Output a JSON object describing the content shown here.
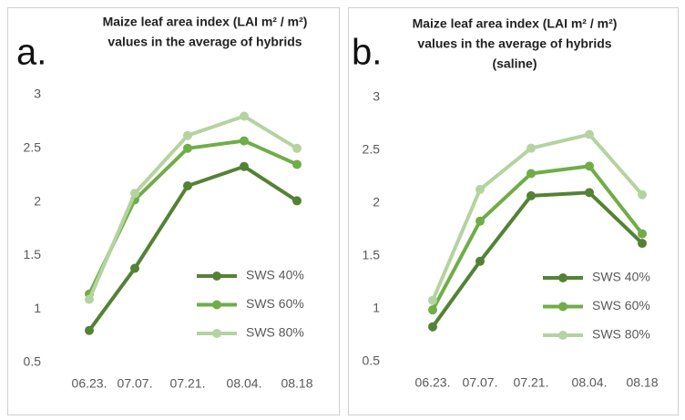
{
  "chart_data": [
    {
      "type": "line",
      "panel_label": "a.",
      "title": [
        "Maize leaf area index (LAI m² / m²)",
        "values in the average of hybrids"
      ],
      "categories": [
        "06.23.",
        "07.07.",
        "07.21.",
        "08.04.",
        "08.18"
      ],
      "series": [
        {
          "name": "SWS 40%",
          "color": "#548235",
          "values": [
            0.8,
            1.38,
            2.15,
            2.33,
            2.01
          ]
        },
        {
          "name": "SWS 60%",
          "color": "#70ad47",
          "values": [
            1.14,
            2.02,
            2.5,
            2.57,
            2.35
          ]
        },
        {
          "name": "SWS 80%",
          "color": "#b4d3a0",
          "values": [
            1.09,
            2.08,
            2.62,
            2.8,
            2.5
          ]
        }
      ],
      "ylim": [
        0.5,
        3
      ],
      "yticks": [
        0.5,
        1,
        1.5,
        2,
        2.5,
        3
      ],
      "grid": false,
      "legend": "lower right"
    },
    {
      "type": "line",
      "panel_label": "b.",
      "title": [
        "Maize leaf area index (LAI m² / m²)",
        "values in the average of hybrids",
        "(saline)"
      ],
      "categories": [
        "06.23.",
        "07.07.",
        "07.21.",
        "08.04.",
        "08.18"
      ],
      "series": [
        {
          "name": "SWS 40%",
          "color": "#548235",
          "values": [
            0.83,
            1.45,
            2.07,
            2.1,
            1.62
          ]
        },
        {
          "name": "SWS 60%",
          "color": "#70ad47",
          "values": [
            0.99,
            1.83,
            2.28,
            2.35,
            1.71
          ]
        },
        {
          "name": "SWS 80%",
          "color": "#b4d3a0",
          "values": [
            1.08,
            2.13,
            2.52,
            2.65,
            2.08
          ]
        }
      ],
      "ylim": [
        0.5,
        3
      ],
      "yticks": [
        0.5,
        1,
        1.5,
        2,
        2.5,
        3
      ],
      "grid": false,
      "legend": "lower right"
    }
  ]
}
